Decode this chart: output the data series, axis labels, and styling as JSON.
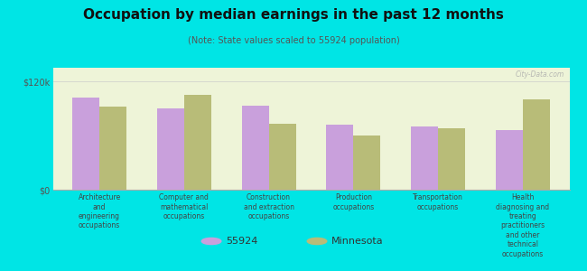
{
  "title": "Occupation by median earnings in the past 12 months",
  "subtitle": "(Note: State values scaled to 55924 population)",
  "background_color": "#00e5e5",
  "plot_bg_color": "#eef4d8",
  "categories": [
    "Architecture\nand\nengineering\noccupations",
    "Computer and\nmathematical\noccupations",
    "Construction\nand extraction\noccupations",
    "Production\noccupations",
    "Transportation\noccupations",
    "Health\ndiagnosing and\ntreating\npractitioners\nand other\ntechnical\noccupations"
  ],
  "values_55924": [
    102000,
    90000,
    93000,
    72000,
    70000,
    66000
  ],
  "values_minnesota": [
    92000,
    105000,
    73000,
    60000,
    68000,
    100000
  ],
  "color_55924": "#c9a0dc",
  "color_minnesota": "#b8bc78",
  "ylim": [
    0,
    135000
  ],
  "ytick_vals": [
    0,
    120000
  ],
  "ytick_labels": [
    "$0",
    "$120k"
  ],
  "legend_label_55924": "55924",
  "legend_label_minnesota": "Minnesota",
  "watermark": "City-Data.com"
}
